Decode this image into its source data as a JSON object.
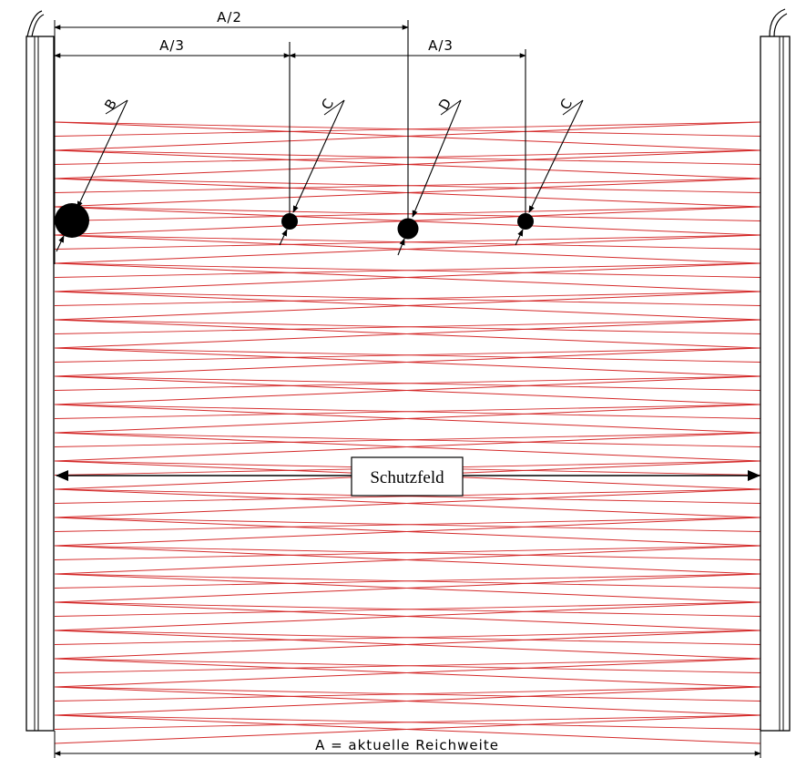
{
  "labels": {
    "a_half": "A/2",
    "a_third_left": "A/3",
    "a_third_right": "A/3",
    "callout_b": "B",
    "callout_c_left": "C",
    "callout_d": "D",
    "callout_c_right": "C",
    "protective_field": "Schutzfeld",
    "range": "A = aktuelle Reichweite"
  },
  "colors": {
    "beam": "#d42a2a",
    "line": "#000000",
    "background": "#ffffff"
  }
}
